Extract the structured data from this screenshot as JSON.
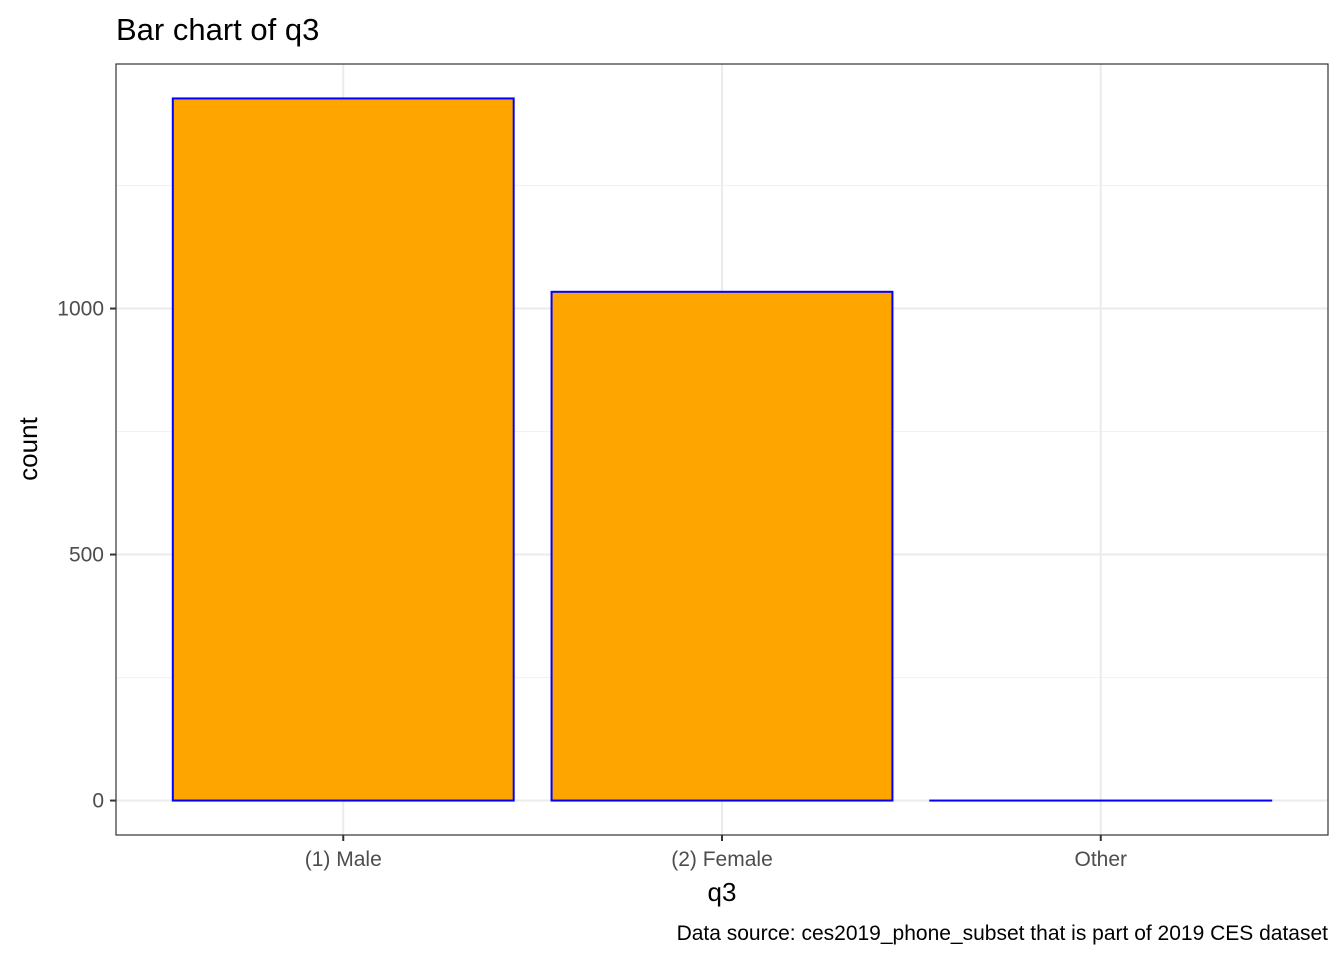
{
  "chart_data": {
    "type": "bar",
    "title": "Bar chart of q3",
    "xlabel": "q3",
    "ylabel": "count",
    "caption": "Data source: ces2019_phone_subset that is part of 2019 CES dataset",
    "categories": [
      "(1) Male",
      "(2) Female",
      "Other"
    ],
    "values": [
      1427,
      1034,
      0
    ],
    "ylim": [
      -70,
      1497
    ],
    "y_ticks": [
      0,
      500,
      1000
    ],
    "y_tick_labels": [
      "0",
      "500",
      "1000"
    ],
    "y_minor_ticks": [
      250,
      750,
      1250
    ],
    "grid": true,
    "legend": "none",
    "colors": {
      "bar_fill": "#FFA500",
      "bar_outline": "#0000FF",
      "grid_major": "#EBEBEB",
      "grid_minor": "#F2F2F2",
      "panel_border": "#333333",
      "tick_text": "#4D4D4D"
    }
  }
}
